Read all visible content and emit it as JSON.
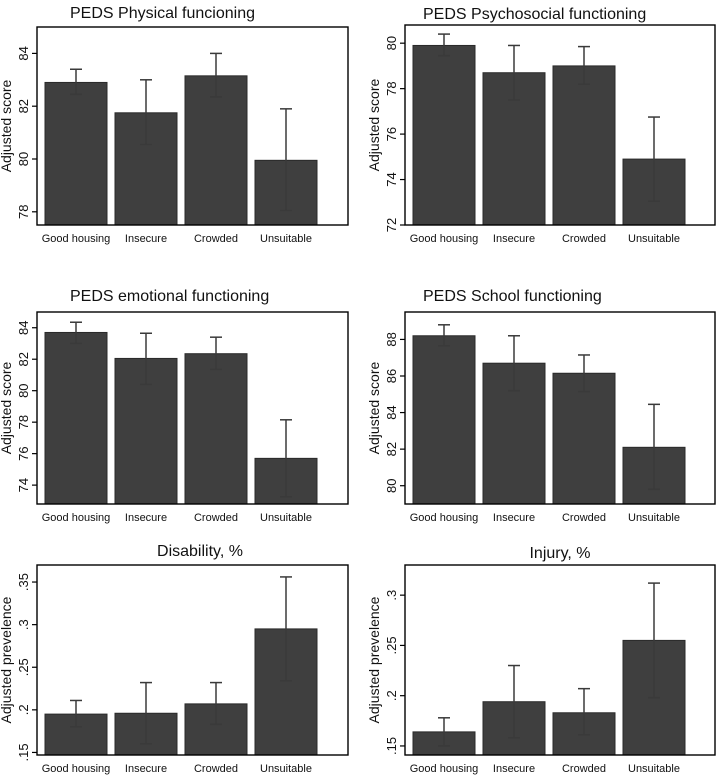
{
  "chart_data": [
    {
      "type": "bar",
      "title": "PEDS Physical funcioning",
      "ylabel": "Adjusted score",
      "xlabel": "",
      "categories": [
        "Good housing",
        "Insecure",
        "Crowded",
        "Unsuitable"
      ],
      "values": [
        82.9,
        81.75,
        83.15,
        79.95
      ],
      "error_low": [
        82.45,
        80.55,
        82.35,
        78.05
      ],
      "error_high": [
        83.4,
        83.0,
        84.0,
        81.9
      ],
      "ylim": [
        77.5,
        85.0
      ],
      "yticks": [
        78,
        80,
        82,
        84
      ],
      "ytick_labels": [
        "78",
        "80",
        "82",
        "84"
      ],
      "grid": false
    },
    {
      "type": "bar",
      "title": "PEDS Psychosocial functioning",
      "ylabel": "Adjusted score",
      "xlabel": "",
      "categories": [
        "Good housing",
        "Insecure",
        "Crowded",
        "Unsuitable"
      ],
      "values": [
        79.9,
        78.7,
        79.0,
        74.9
      ],
      "error_low": [
        79.45,
        77.5,
        78.2,
        73.05
      ],
      "error_high": [
        80.4,
        79.9,
        79.85,
        76.75
      ],
      "ylim": [
        72.0,
        80.8
      ],
      "yticks": [
        72,
        74,
        76,
        78,
        80
      ],
      "ytick_labels": [
        "72",
        "74",
        "76",
        "78",
        "80"
      ],
      "grid": false
    },
    {
      "type": "bar",
      "title": "PEDS emotional functioning",
      "ylabel": "Adjusted score",
      "xlabel": "",
      "categories": [
        "Good housing",
        "Insecure",
        "Crowded",
        "Unsuitable"
      ],
      "values": [
        83.7,
        82.05,
        82.35,
        75.7
      ],
      "error_low": [
        83.0,
        80.4,
        81.35,
        73.25
      ],
      "error_high": [
        84.35,
        83.65,
        83.4,
        78.15
      ],
      "ylim": [
        72.8,
        85.0
      ],
      "yticks": [
        74,
        76,
        78,
        80,
        82,
        84
      ],
      "ytick_labels": [
        "74",
        "76",
        "78",
        "80",
        "82",
        "84"
      ],
      "grid": false
    },
    {
      "type": "bar",
      "title": "PEDS School functioning",
      "ylabel": "Adjusted score",
      "xlabel": "",
      "categories": [
        "Good housing",
        "Insecure",
        "Crowded",
        "Unsuitable"
      ],
      "values": [
        88.2,
        86.7,
        86.15,
        82.1
      ],
      "error_low": [
        87.65,
        85.2,
        85.15,
        79.8
      ],
      "error_high": [
        88.8,
        88.2,
        87.15,
        84.45
      ],
      "ylim": [
        79.0,
        89.5
      ],
      "yticks": [
        80,
        82,
        84,
        86,
        88
      ],
      "ytick_labels": [
        "80",
        "82",
        "84",
        "86",
        "88"
      ],
      "grid": false
    },
    {
      "type": "bar",
      "title": "Disability, %",
      "ylabel": "Adjusted prevelence",
      "xlabel": "",
      "categories": [
        "Good housing",
        "Insecure",
        "Crowded",
        "Unsuitable"
      ],
      "values": [
        0.195,
        0.196,
        0.207,
        0.295
      ],
      "error_low": [
        0.18,
        0.16,
        0.183,
        0.234
      ],
      "error_high": [
        0.211,
        0.232,
        0.232,
        0.356
      ],
      "ylim": [
        0.147,
        0.37
      ],
      "yticks": [
        0.15,
        0.2,
        0.25,
        0.3,
        0.35
      ],
      "ytick_labels": [
        ".15",
        ".2",
        ".25",
        ".3",
        ".35"
      ],
      "grid": false
    },
    {
      "type": "bar",
      "title": "Injury, %",
      "ylabel": "Adjusted prevelence",
      "xlabel": "",
      "categories": [
        "Good housing",
        "Insecure",
        "Crowded",
        "Unsuitable"
      ],
      "values": [
        0.164,
        0.194,
        0.183,
        0.255
      ],
      "error_low": [
        0.15,
        0.158,
        0.161,
        0.198
      ],
      "error_high": [
        0.178,
        0.23,
        0.207,
        0.312
      ],
      "ylim": [
        0.141,
        0.33
      ],
      "yticks": [
        0.15,
        0.2,
        0.25,
        0.3
      ],
      "ytick_labels": [
        ".15",
        ".2",
        ".25",
        ".3"
      ],
      "grid": false
    }
  ]
}
